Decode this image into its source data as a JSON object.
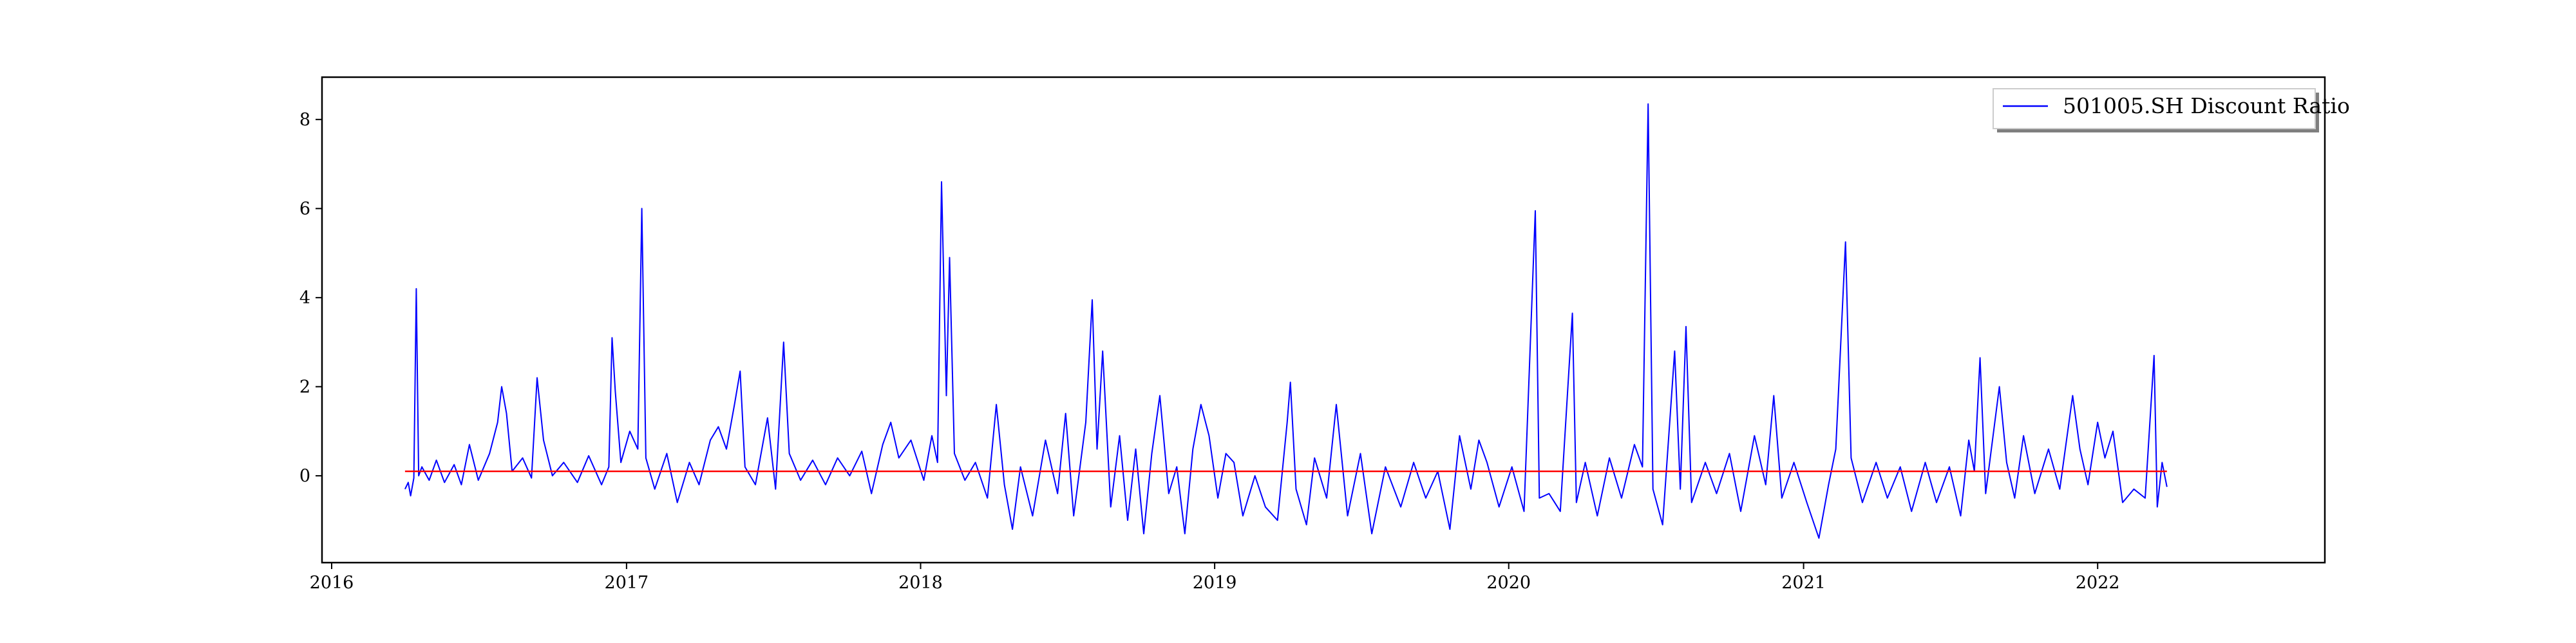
{
  "chart_data": {
    "type": "line",
    "title": "",
    "xlabel": "",
    "ylabel": "",
    "x_range": [
      "2015-12-20",
      "2022-10-10"
    ],
    "ylim": [
      -1.95,
      8.95
    ],
    "x_ticks": [
      "2016",
      "2017",
      "2018",
      "2019",
      "2020",
      "2021",
      "2022"
    ],
    "y_ticks": [
      0,
      2,
      4,
      6,
      8
    ],
    "grid": false,
    "legend": {
      "placement": "top-right"
    },
    "series": [
      {
        "name": "501005.SH Discount Ratio",
        "color": "#0000ff",
        "points": [
          [
            "2016-04-01",
            -0.3
          ],
          [
            "2016-04-05",
            -0.15
          ],
          [
            "2016-04-08",
            -0.45
          ],
          [
            "2016-04-12",
            -0.05
          ],
          [
            "2016-04-15",
            4.2
          ],
          [
            "2016-04-18",
            0.0
          ],
          [
            "2016-04-22",
            0.2
          ],
          [
            "2016-05-01",
            -0.1
          ],
          [
            "2016-05-10",
            0.35
          ],
          [
            "2016-05-20",
            -0.15
          ],
          [
            "2016-06-01",
            0.25
          ],
          [
            "2016-06-10",
            -0.2
          ],
          [
            "2016-06-20",
            0.7
          ],
          [
            "2016-07-01",
            -0.1
          ],
          [
            "2016-07-15",
            0.5
          ],
          [
            "2016-07-25",
            1.2
          ],
          [
            "2016-07-30",
            2.0
          ],
          [
            "2016-08-05",
            1.4
          ],
          [
            "2016-08-12",
            0.1
          ],
          [
            "2016-08-25",
            0.4
          ],
          [
            "2016-09-05",
            -0.05
          ],
          [
            "2016-09-12",
            2.2
          ],
          [
            "2016-09-20",
            0.8
          ],
          [
            "2016-10-01",
            0.0
          ],
          [
            "2016-10-15",
            0.3
          ],
          [
            "2016-11-01",
            -0.15
          ],
          [
            "2016-11-15",
            0.45
          ],
          [
            "2016-12-01",
            -0.2
          ],
          [
            "2016-12-10",
            0.2
          ],
          [
            "2016-12-14",
            3.1
          ],
          [
            "2016-12-18",
            1.9
          ],
          [
            "2016-12-25",
            0.3
          ],
          [
            "2017-01-05",
            1.0
          ],
          [
            "2017-01-15",
            0.6
          ],
          [
            "2017-01-20",
            6.0
          ],
          [
            "2017-01-25",
            0.4
          ],
          [
            "2017-02-05",
            -0.3
          ],
          [
            "2017-02-20",
            0.5
          ],
          [
            "2017-03-05",
            -0.6
          ],
          [
            "2017-03-20",
            0.3
          ],
          [
            "2017-04-01",
            -0.2
          ],
          [
            "2017-04-15",
            0.8
          ],
          [
            "2017-04-25",
            1.1
          ],
          [
            "2017-05-05",
            0.6
          ],
          [
            "2017-05-15",
            1.6
          ],
          [
            "2017-05-22",
            2.35
          ],
          [
            "2017-05-28",
            0.2
          ],
          [
            "2017-06-10",
            -0.2
          ],
          [
            "2017-06-25",
            1.3
          ],
          [
            "2017-07-05",
            -0.3
          ],
          [
            "2017-07-15",
            3.0
          ],
          [
            "2017-07-22",
            0.5
          ],
          [
            "2017-08-05",
            -0.1
          ],
          [
            "2017-08-20",
            0.35
          ],
          [
            "2017-09-05",
            -0.2
          ],
          [
            "2017-09-20",
            0.4
          ],
          [
            "2017-10-05",
            0.0
          ],
          [
            "2017-10-20",
            0.55
          ],
          [
            "2017-11-01",
            -0.4
          ],
          [
            "2017-11-15",
            0.7
          ],
          [
            "2017-11-25",
            1.2
          ],
          [
            "2017-12-05",
            0.4
          ],
          [
            "2017-12-20",
            0.8
          ],
          [
            "2018-01-05",
            -0.1
          ],
          [
            "2018-01-15",
            0.9
          ],
          [
            "2018-01-22",
            0.3
          ],
          [
            "2018-01-27",
            6.6
          ],
          [
            "2018-02-02",
            1.8
          ],
          [
            "2018-02-06",
            4.9
          ],
          [
            "2018-02-12",
            0.5
          ],
          [
            "2018-02-25",
            -0.1
          ],
          [
            "2018-03-10",
            0.3
          ],
          [
            "2018-03-25",
            -0.5
          ],
          [
            "2018-04-05",
            1.6
          ],
          [
            "2018-04-15",
            -0.2
          ],
          [
            "2018-04-25",
            -1.2
          ],
          [
            "2018-05-05",
            0.2
          ],
          [
            "2018-05-20",
            -0.9
          ],
          [
            "2018-06-05",
            0.8
          ],
          [
            "2018-06-20",
            -0.4
          ],
          [
            "2018-06-30",
            1.4
          ],
          [
            "2018-07-10",
            -0.9
          ],
          [
            "2018-07-25",
            1.2
          ],
          [
            "2018-08-02",
            3.95
          ],
          [
            "2018-08-08",
            0.6
          ],
          [
            "2018-08-15",
            2.8
          ],
          [
            "2018-08-25",
            -0.7
          ],
          [
            "2018-09-05",
            0.9
          ],
          [
            "2018-09-15",
            -1.0
          ],
          [
            "2018-09-25",
            0.6
          ],
          [
            "2018-10-05",
            -1.3
          ],
          [
            "2018-10-15",
            0.5
          ],
          [
            "2018-10-25",
            1.8
          ],
          [
            "2018-11-05",
            -0.4
          ],
          [
            "2018-11-15",
            0.2
          ],
          [
            "2018-11-25",
            -1.3
          ],
          [
            "2018-12-05",
            0.6
          ],
          [
            "2018-12-15",
            1.6
          ],
          [
            "2018-12-25",
            0.9
          ],
          [
            "2019-01-05",
            -0.5
          ],
          [
            "2019-01-15",
            0.5
          ],
          [
            "2019-01-25",
            0.3
          ],
          [
            "2019-02-05",
            -0.9
          ],
          [
            "2019-02-20",
            0.0
          ],
          [
            "2019-03-05",
            -0.7
          ],
          [
            "2019-03-20",
            -1.0
          ],
          [
            "2019-04-01",
            1.2
          ],
          [
            "2019-04-05",
            2.1
          ],
          [
            "2019-04-12",
            -0.3
          ],
          [
            "2019-04-25",
            -1.1
          ],
          [
            "2019-05-05",
            0.4
          ],
          [
            "2019-05-20",
            -0.5
          ],
          [
            "2019-06-01",
            1.6
          ],
          [
            "2019-06-15",
            -0.9
          ],
          [
            "2019-07-01",
            0.5
          ],
          [
            "2019-07-15",
            -1.3
          ],
          [
            "2019-08-01",
            0.2
          ],
          [
            "2019-08-20",
            -0.7
          ],
          [
            "2019-09-05",
            0.3
          ],
          [
            "2019-09-20",
            -0.5
          ],
          [
            "2019-10-05",
            0.1
          ],
          [
            "2019-10-20",
            -1.2
          ],
          [
            "2019-11-01",
            0.9
          ],
          [
            "2019-11-15",
            -0.3
          ],
          [
            "2019-11-25",
            0.8
          ],
          [
            "2019-12-05",
            0.3
          ],
          [
            "2019-12-20",
            -0.7
          ],
          [
            "2020-01-05",
            0.2
          ],
          [
            "2020-01-20",
            -0.8
          ],
          [
            "2020-02-03",
            5.95
          ],
          [
            "2020-02-08",
            -0.5
          ],
          [
            "2020-02-20",
            -0.4
          ],
          [
            "2020-03-05",
            -0.8
          ],
          [
            "2020-03-20",
            3.65
          ],
          [
            "2020-03-25",
            -0.6
          ],
          [
            "2020-04-05",
            0.3
          ],
          [
            "2020-04-20",
            -0.9
          ],
          [
            "2020-05-05",
            0.4
          ],
          [
            "2020-05-20",
            -0.5
          ],
          [
            "2020-06-05",
            0.7
          ],
          [
            "2020-06-15",
            0.2
          ],
          [
            "2020-06-22",
            8.35
          ],
          [
            "2020-06-28",
            -0.3
          ],
          [
            "2020-07-10",
            -1.1
          ],
          [
            "2020-07-25",
            2.8
          ],
          [
            "2020-08-01",
            -0.3
          ],
          [
            "2020-08-08",
            3.35
          ],
          [
            "2020-08-15",
            -0.6
          ],
          [
            "2020-09-01",
            0.3
          ],
          [
            "2020-09-15",
            -0.4
          ],
          [
            "2020-10-01",
            0.5
          ],
          [
            "2020-10-15",
            -0.8
          ],
          [
            "2020-11-01",
            0.9
          ],
          [
            "2020-11-15",
            -0.2
          ],
          [
            "2020-11-25",
            1.8
          ],
          [
            "2020-12-05",
            -0.5
          ],
          [
            "2020-12-20",
            0.3
          ],
          [
            "2021-01-05",
            -0.6
          ],
          [
            "2021-01-20",
            -1.4
          ],
          [
            "2021-02-01",
            -0.2
          ],
          [
            "2021-02-10",
            0.6
          ],
          [
            "2021-02-22",
            5.25
          ],
          [
            "2021-03-01",
            0.4
          ],
          [
            "2021-03-15",
            -0.6
          ],
          [
            "2021-04-01",
            0.3
          ],
          [
            "2021-04-15",
            -0.5
          ],
          [
            "2021-05-01",
            0.2
          ],
          [
            "2021-05-15",
            -0.8
          ],
          [
            "2021-06-01",
            0.3
          ],
          [
            "2021-06-15",
            -0.6
          ],
          [
            "2021-07-01",
            0.2
          ],
          [
            "2021-07-15",
            -0.9
          ],
          [
            "2021-07-25",
            0.8
          ],
          [
            "2021-08-01",
            0.1
          ],
          [
            "2021-08-08",
            2.65
          ],
          [
            "2021-08-15",
            -0.4
          ],
          [
            "2021-09-01",
            2.0
          ],
          [
            "2021-09-10",
            0.3
          ],
          [
            "2021-09-20",
            -0.5
          ],
          [
            "2021-10-01",
            0.9
          ],
          [
            "2021-10-15",
            -0.4
          ],
          [
            "2021-11-01",
            0.6
          ],
          [
            "2021-11-15",
            -0.3
          ],
          [
            "2021-12-01",
            1.8
          ],
          [
            "2021-12-10",
            0.6
          ],
          [
            "2021-12-20",
            -0.2
          ],
          [
            "2022-01-01",
            1.2
          ],
          [
            "2022-01-10",
            0.4
          ],
          [
            "2022-01-20",
            1.0
          ],
          [
            "2022-02-01",
            -0.6
          ],
          [
            "2022-02-15",
            -0.3
          ],
          [
            "2022-03-01",
            -0.5
          ],
          [
            "2022-03-12",
            2.7
          ],
          [
            "2022-03-16",
            -0.7
          ],
          [
            "2022-03-22",
            0.3
          ],
          [
            "2022-03-28",
            -0.25
          ]
        ]
      },
      {
        "name": "",
        "color": "#ff0000",
        "points": [
          [
            "2016-04-01",
            0.1
          ],
          [
            "2022-03-28",
            0.1
          ]
        ]
      }
    ]
  }
}
